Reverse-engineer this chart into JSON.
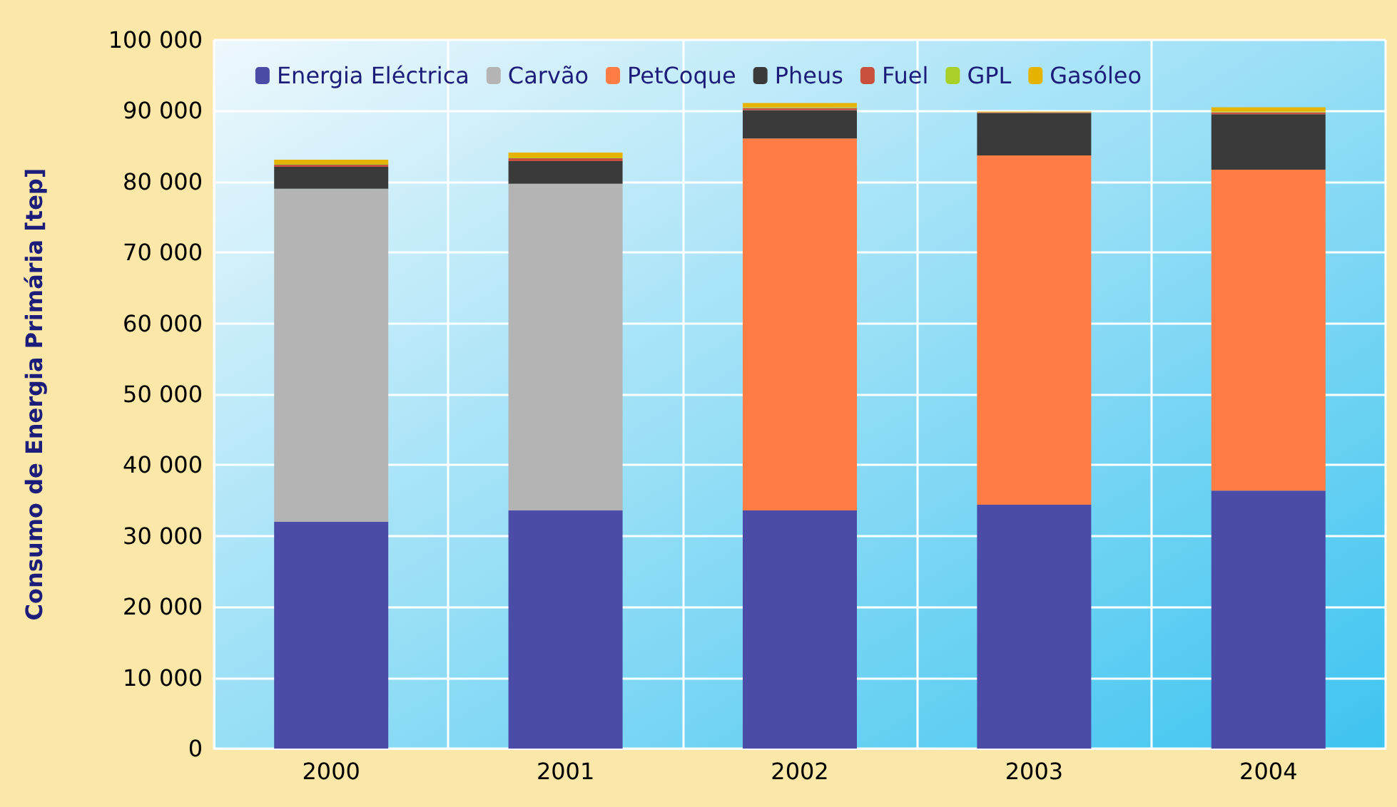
{
  "chart_data": {
    "type": "bar",
    "stacked": true,
    "ylabel": "Consumo de Energia Primária [tep]",
    "categories": [
      "2000",
      "2001",
      "2002",
      "2003",
      "2004"
    ],
    "series": [
      {
        "name": "Energia Eléctrica",
        "color": "#4b4ba8",
        "values": [
          32000,
          33600,
          33600,
          34400,
          36400
        ]
      },
      {
        "name": "Carvão",
        "color": "#b4b4b4",
        "values": [
          47000,
          46100,
          null,
          null,
          null
        ]
      },
      {
        "name": "PetCoque",
        "color": "#ff7d45",
        "values": [
          null,
          null,
          52500,
          49300,
          45300
        ]
      },
      {
        "name": "Pheus",
        "color": "#3a3a3a",
        "values": [
          3100,
          3200,
          4000,
          6000,
          7800
        ]
      },
      {
        "name": "Fuel",
        "color": "#c8503c",
        "values": [
          300,
          400,
          300,
          100,
          300
        ]
      },
      {
        "name": "GPL",
        "color": "#a8d028",
        "values": [
          100,
          100,
          100,
          null,
          100
        ]
      },
      {
        "name": "Gasóleo",
        "color": "#e6b400",
        "values": [
          600,
          700,
          600,
          100,
          600
        ]
      }
    ],
    "ylim": [
      0,
      100000
    ],
    "yticks": [
      0,
      {
        "value": 10000,
        "label": "10 000"
      },
      {
        "value": 20000,
        "label": "20 000"
      },
      {
        "value": 30000,
        "label": "30 000"
      },
      {
        "value": 40000,
        "label": "40 000"
      },
      {
        "value": 50000,
        "label": "50 000"
      },
      {
        "value": 60000,
        "label": "60 000"
      },
      {
        "value": 70000,
        "label": "70 000"
      },
      {
        "value": 80000,
        "label": "80 000"
      },
      {
        "value": 90000,
        "label": "90 000"
      },
      {
        "value": 100000,
        "label": "100 000"
      }
    ],
    "grid": true,
    "legend": "top"
  }
}
